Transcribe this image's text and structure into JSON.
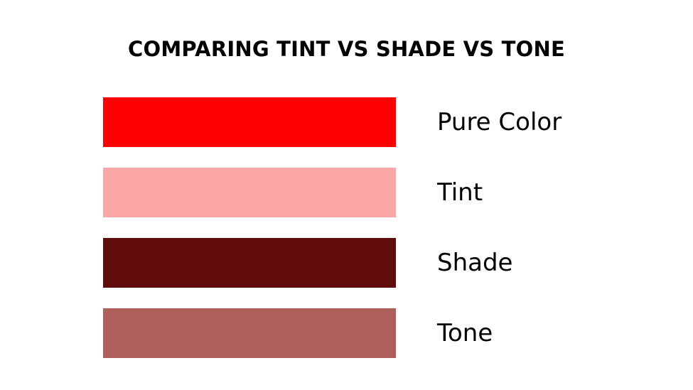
{
  "title": "COMPARING TINT VS SHADE VS TONE",
  "items": [
    {
      "label": "Pure Color",
      "color": "#ff0000"
    },
    {
      "label": "Tint",
      "color": "#faa6a6"
    },
    {
      "label": "Shade",
      "color": "#600c0c"
    },
    {
      "label": "Tone",
      "color": "#b05e5c"
    }
  ]
}
